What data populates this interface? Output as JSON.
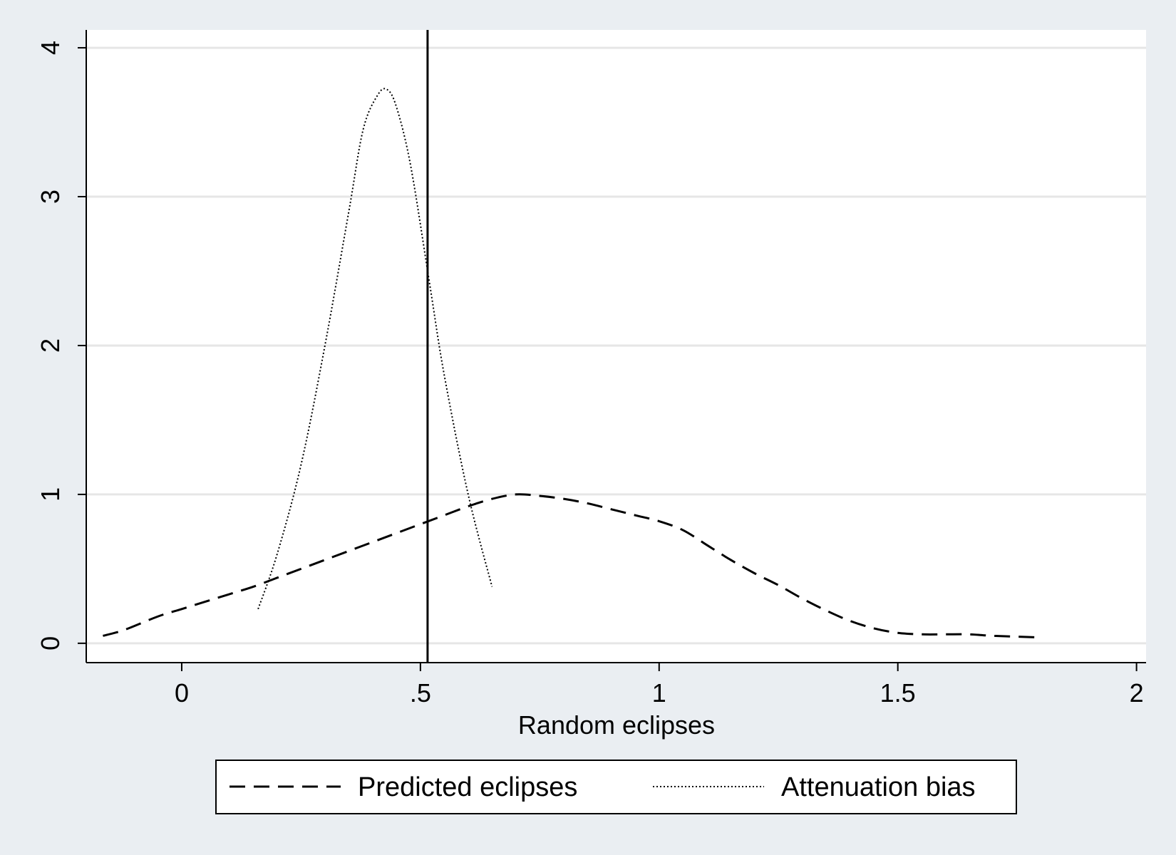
{
  "chart_data": {
    "type": "line",
    "title": "",
    "xlabel": "Random eclipses",
    "ylabel": "",
    "xlim": [
      -0.2,
      2.02
    ],
    "ylim": [
      -0.13,
      4.12
    ],
    "xticks": [
      {
        "value": 0,
        "label": "0"
      },
      {
        "value": 0.5,
        "label": ".5"
      },
      {
        "value": 1,
        "label": "1"
      },
      {
        "value": 1.5,
        "label": "1.5"
      },
      {
        "value": 2,
        "label": "2"
      }
    ],
    "yticks": [
      {
        "value": 0,
        "label": "0"
      },
      {
        "value": 1,
        "label": "1"
      },
      {
        "value": 2,
        "label": "2"
      },
      {
        "value": 3,
        "label": "3"
      },
      {
        "value": 4,
        "label": "4"
      }
    ],
    "grid": "horizontal",
    "legend_position": "bottom",
    "vline": 0.515,
    "colors": {
      "background": "#eaeef2",
      "plot_background": "#ffffff",
      "grid": "#e6e6e6",
      "line": "#000000"
    },
    "series": [
      {
        "name": "Predicted eclipses",
        "style": "dashed",
        "x": [
          -0.165,
          -0.12,
          -0.05,
          0.0,
          0.05,
          0.1,
          0.15,
          0.2,
          0.25,
          0.3,
          0.35,
          0.4,
          0.45,
          0.5,
          0.55,
          0.6,
          0.65,
          0.7,
          0.75,
          0.8,
          0.85,
          0.9,
          0.95,
          1.0,
          1.05,
          1.1,
          1.15,
          1.2,
          1.25,
          1.3,
          1.35,
          1.4,
          1.45,
          1.5,
          1.55,
          1.6,
          1.65,
          1.7,
          1.79
        ],
        "y": [
          0.05,
          0.09,
          0.18,
          0.23,
          0.28,
          0.33,
          0.38,
          0.44,
          0.5,
          0.56,
          0.62,
          0.68,
          0.74,
          0.8,
          0.86,
          0.92,
          0.97,
          1.0,
          0.99,
          0.97,
          0.94,
          0.9,
          0.86,
          0.82,
          0.76,
          0.66,
          0.56,
          0.47,
          0.39,
          0.3,
          0.22,
          0.15,
          0.1,
          0.07,
          0.06,
          0.06,
          0.06,
          0.05,
          0.04
        ]
      },
      {
        "name": "Attenuation bias",
        "style": "dotted",
        "x": [
          0.16,
          0.2,
          0.25,
          0.3,
          0.35,
          0.38,
          0.41,
          0.43,
          0.45,
          0.48,
          0.52,
          0.55,
          0.6,
          0.65
        ],
        "y": [
          0.23,
          0.6,
          1.2,
          2.0,
          2.9,
          3.45,
          3.68,
          3.72,
          3.6,
          3.2,
          2.4,
          1.8,
          1.0,
          0.38
        ]
      }
    ]
  }
}
